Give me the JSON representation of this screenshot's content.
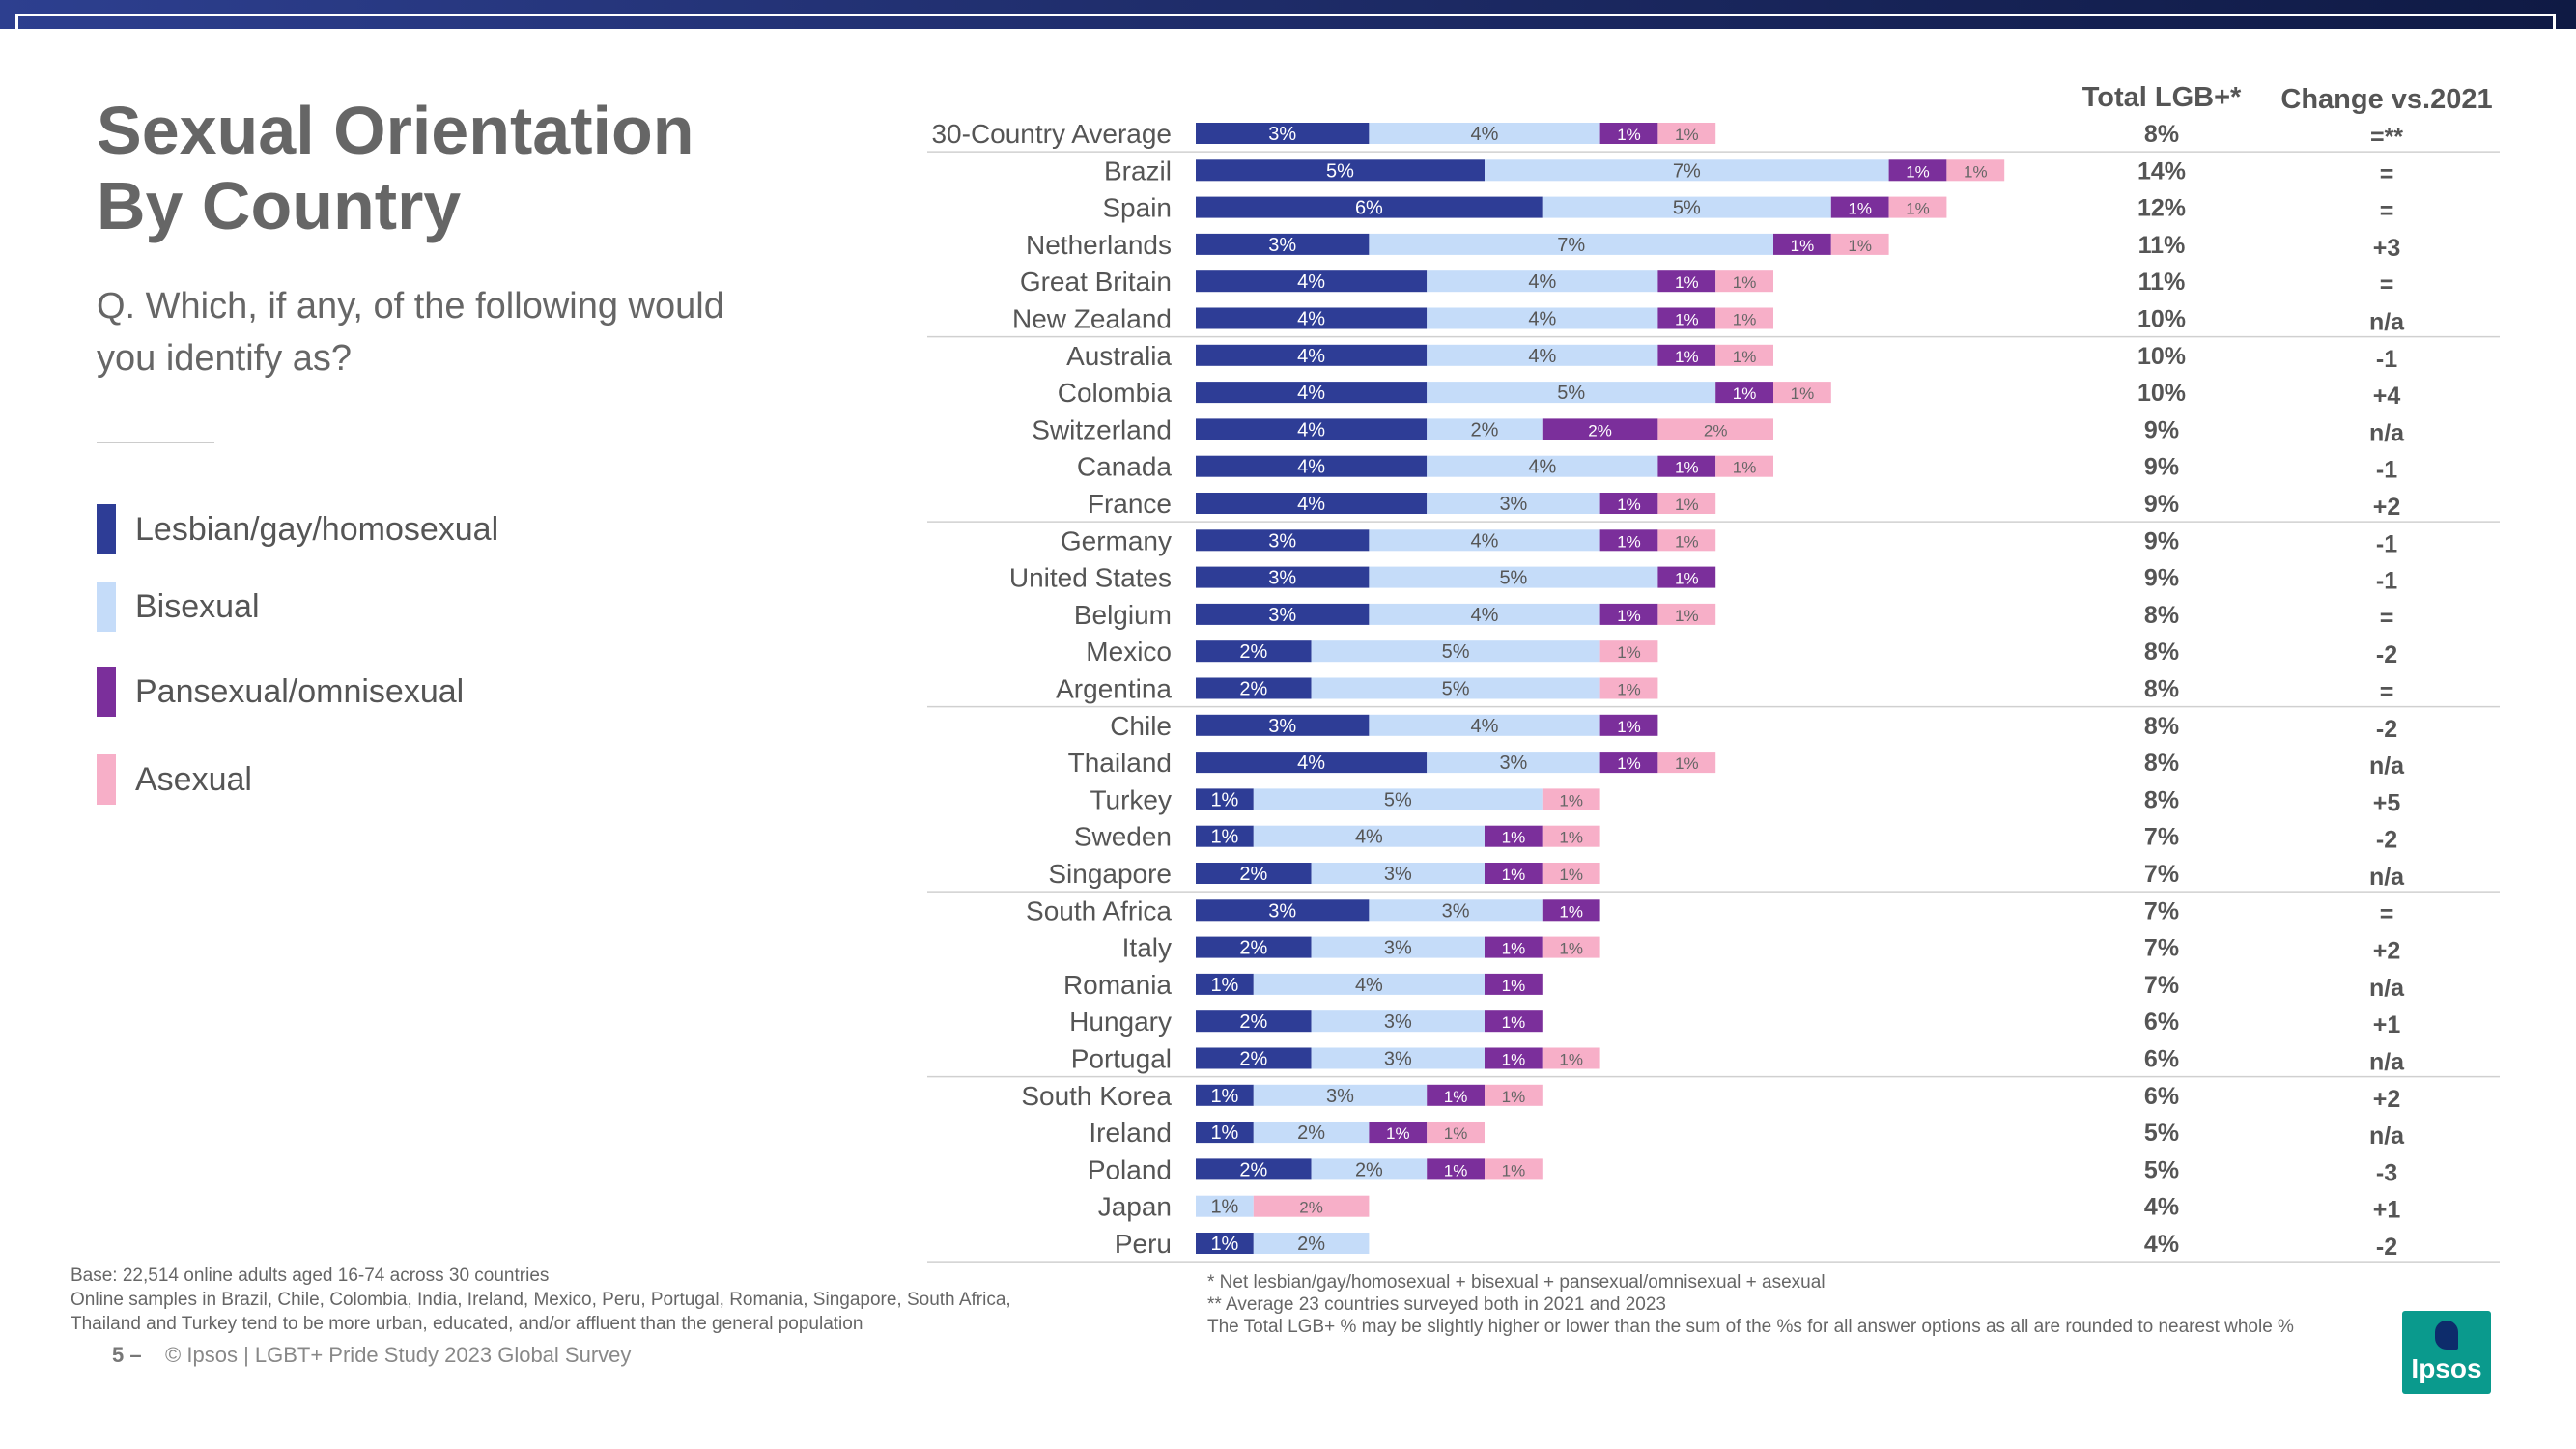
{
  "title_lines": [
    "Sexual Orientation",
    "By Country"
  ],
  "question": "Q. Which, if any, of the following would you identify as?",
  "legend": [
    {
      "label": "Lesbian/gay/homosexual",
      "color": "#2e3d96"
    },
    {
      "label": "Bisexual",
      "color": "#c5dcf9"
    },
    {
      "label": "Pansexual/omnisexual",
      "color": "#7b2f9b"
    },
    {
      "label": "Asexual",
      "color": "#f7afc8"
    }
  ],
  "chart_data": {
    "type": "bar",
    "orientation": "horizontal",
    "stacked": true,
    "value_suffix": "%",
    "series_names": [
      "Lesbian/gay/homosexual",
      "Bisexual",
      "Pansexual/omnisexual",
      "Asexual"
    ],
    "series_colors": [
      "#2e3d96",
      "#c5dcf9",
      "#7b2f9b",
      "#f7afc8"
    ],
    "headers": {
      "total": "Total LGB+*",
      "change": "Change vs.2021"
    },
    "rows": [
      {
        "country": "30-Country Average",
        "values": [
          3,
          4,
          1,
          1
        ],
        "total": "8%",
        "change": "=**"
      },
      {
        "country": "Brazil",
        "values": [
          5,
          7,
          1,
          1
        ],
        "total": "14%",
        "change": "="
      },
      {
        "country": "Spain",
        "values": [
          6,
          5,
          1,
          1
        ],
        "total": "12%",
        "change": "="
      },
      {
        "country": "Netherlands",
        "values": [
          3,
          7,
          1,
          1
        ],
        "total": "11%",
        "change": "+3"
      },
      {
        "country": "Great Britain",
        "values": [
          4,
          4,
          1,
          1
        ],
        "total": "11%",
        "change": "="
      },
      {
        "country": "New Zealand",
        "values": [
          4,
          4,
          1,
          1
        ],
        "total": "10%",
        "change": "n/a"
      },
      {
        "country": "Australia",
        "values": [
          4,
          4,
          1,
          1
        ],
        "total": "10%",
        "change": "-1"
      },
      {
        "country": "Colombia",
        "values": [
          4,
          5,
          1,
          1
        ],
        "total": "10%",
        "change": "+4"
      },
      {
        "country": "Switzerland",
        "values": [
          4,
          2,
          2,
          2
        ],
        "total": "9%",
        "change": "n/a"
      },
      {
        "country": "Canada",
        "values": [
          4,
          4,
          1,
          1
        ],
        "total": "9%",
        "change": "-1"
      },
      {
        "country": "France",
        "values": [
          4,
          3,
          1,
          1
        ],
        "total": "9%",
        "change": "+2"
      },
      {
        "country": "Germany",
        "values": [
          3,
          4,
          1,
          1
        ],
        "total": "9%",
        "change": "-1"
      },
      {
        "country": "United States",
        "values": [
          3,
          5,
          1,
          null
        ],
        "total": "9%",
        "change": "-1"
      },
      {
        "country": "Belgium",
        "values": [
          3,
          4,
          1,
          1
        ],
        "total": "8%",
        "change": "="
      },
      {
        "country": "Mexico",
        "values": [
          2,
          5,
          null,
          1
        ],
        "total": "8%",
        "change": "-2"
      },
      {
        "country": "Argentina",
        "values": [
          2,
          5,
          null,
          1
        ],
        "total": "8%",
        "change": "="
      },
      {
        "country": "Chile",
        "values": [
          3,
          4,
          1,
          null
        ],
        "total": "8%",
        "change": "-2"
      },
      {
        "country": "Thailand",
        "values": [
          4,
          3,
          1,
          1
        ],
        "total": "8%",
        "change": "n/a"
      },
      {
        "country": "Turkey",
        "values": [
          1,
          5,
          null,
          1
        ],
        "total": "8%",
        "change": "+5"
      },
      {
        "country": "Sweden",
        "values": [
          1,
          4,
          1,
          1
        ],
        "total": "7%",
        "change": "-2"
      },
      {
        "country": "Singapore",
        "values": [
          2,
          3,
          1,
          1
        ],
        "total": "7%",
        "change": "n/a"
      },
      {
        "country": "South Africa",
        "values": [
          3,
          3,
          1,
          null
        ],
        "total": "7%",
        "change": "="
      },
      {
        "country": "Italy",
        "values": [
          2,
          3,
          1,
          1
        ],
        "total": "7%",
        "change": "+2"
      },
      {
        "country": "Romania",
        "values": [
          1,
          4,
          1,
          null
        ],
        "total": "7%",
        "change": "n/a"
      },
      {
        "country": "Hungary",
        "values": [
          2,
          3,
          1,
          null
        ],
        "total": "6%",
        "change": "+1"
      },
      {
        "country": "Portugal",
        "values": [
          2,
          3,
          1,
          1
        ],
        "total": "6%",
        "change": "n/a"
      },
      {
        "country": "South Korea",
        "values": [
          1,
          3,
          1,
          1
        ],
        "total": "6%",
        "change": "+2"
      },
      {
        "country": "Ireland",
        "values": [
          1,
          2,
          1,
          1
        ],
        "total": "5%",
        "change": "n/a"
      },
      {
        "country": "Poland",
        "values": [
          2,
          2,
          1,
          1
        ],
        "total": "5%",
        "change": "-3"
      },
      {
        "country": "Japan",
        "values": [
          null,
          1,
          null,
          2
        ],
        "total": "4%",
        "change": "+1"
      },
      {
        "country": "Peru",
        "values": [
          1,
          2,
          null,
          null
        ],
        "total": "4%",
        "change": "-2"
      }
    ]
  },
  "base_notes": [
    "Base: 22,514 online adults aged 16-74 across 30 countries",
    "Online samples in Brazil, Chile, Colombia, India, Ireland, Mexico, Peru, Portugal, Romania, Singapore, South Africa,",
    "Thailand and Turkey tend to be more urban, educated, and/or affluent than the general population"
  ],
  "footnotes": [
    "* Net lesbian/gay/homosexual + bisexual + pansexual/omnisexual + asexual",
    "** Average 23 countries surveyed both in 2021 and 2023",
    "The Total LGB+ % may be slightly higher or lower than the sum of the %s for all answer options as all are rounded to nearest whole %"
  ],
  "footer": {
    "page": "5 –",
    "text": "© Ipsos | LGBT+ Pride Study 2023 Global Survey"
  },
  "logo_text": "Ipsos"
}
